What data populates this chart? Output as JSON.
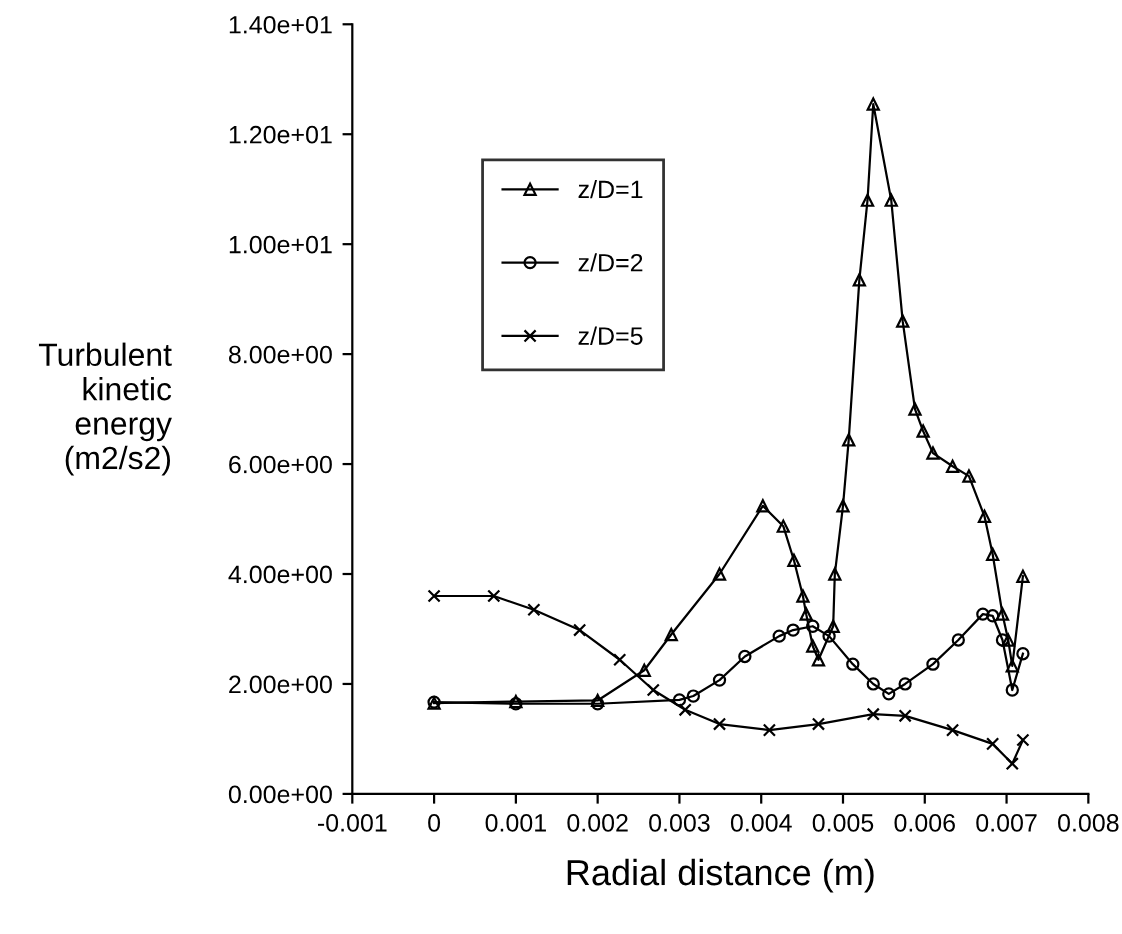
{
  "chart_data": {
    "type": "line",
    "xlabel": "Radial distance (m)",
    "ylabel": "Turbulent\nkinetic\nenergy\n(m2/s2)",
    "xlim": [
      -0.001,
      0.008
    ],
    "xticks": [
      -0.001,
      0,
      0.001,
      0.002,
      0.003,
      0.004,
      0.005,
      0.006,
      0.007,
      0.008
    ],
    "ylim": [
      0,
      14
    ],
    "yticks": [
      {
        "value": 0,
        "label": "0.00e+00"
      },
      {
        "value": 2,
        "label": "2.00e+00"
      },
      {
        "value": 4,
        "label": "4.00e+00"
      },
      {
        "value": 6,
        "label": "6.00e+00"
      },
      {
        "value": 8,
        "label": "8.00e+00"
      },
      {
        "value": 10,
        "label": "1.00e+01"
      },
      {
        "value": 12,
        "label": "1.20e+01"
      },
      {
        "value": 14,
        "label": "1.40e+01"
      }
    ],
    "grid": false,
    "legend": "top left",
    "line_style": "solid",
    "series": [
      {
        "name": "z/D=1",
        "color": "#000000",
        "marker": "triangle",
        "x": [
          0,
          0.001,
          0.002,
          0.00257,
          0.0029,
          0.00349,
          0.00402,
          0.00427,
          0.0044,
          0.00451,
          0.00455,
          0.00463,
          0.0047,
          0.00488,
          0.0049,
          0.005,
          0.00507,
          0.0052,
          0.0053,
          0.00537,
          0.00559,
          0.00573,
          0.00588,
          0.00598,
          0.0061,
          0.00634,
          0.00654,
          0.00673,
          0.00683,
          0.00695,
          0.00702,
          0.00707,
          0.0072
        ],
        "values": [
          1.65,
          1.68,
          1.7,
          2.25,
          2.9,
          4.0,
          5.24,
          4.87,
          4.25,
          3.6,
          3.27,
          2.69,
          2.44,
          3.05,
          4.0,
          5.24,
          6.44,
          9.35,
          10.8,
          12.55,
          10.8,
          8.6,
          7.0,
          6.6,
          6.2,
          5.96,
          5.78,
          5.05,
          4.36,
          3.27,
          2.8,
          2.33,
          3.96
        ]
      },
      {
        "name": "z/D=2",
        "color": "#000000",
        "marker": "circle",
        "x": [
          0,
          0.001,
          0.002,
          0.003,
          0.00317,
          0.00349,
          0.0038,
          0.00422,
          0.00439,
          0.00463,
          0.00483,
          0.00512,
          0.00537,
          0.00556,
          0.00576,
          0.0061,
          0.00641,
          0.00671,
          0.00683,
          0.00695,
          0.00707,
          0.0072
        ],
        "values": [
          1.67,
          1.64,
          1.64,
          1.71,
          1.78,
          2.07,
          2.5,
          2.87,
          2.98,
          3.05,
          2.87,
          2.36,
          2.0,
          1.82,
          2.0,
          2.36,
          2.8,
          3.27,
          3.24,
          2.8,
          1.89,
          2.55
        ]
      },
      {
        "name": "z/D=5",
        "color": "#000000",
        "marker": "cross",
        "x": [
          0,
          0.00073,
          0.00122,
          0.00178,
          0.00227,
          0.00268,
          0.00307,
          0.00349,
          0.0041,
          0.0047,
          0.00537,
          0.00576,
          0.00634,
          0.00683,
          0.00707,
          0.0072
        ],
        "values": [
          3.6,
          3.6,
          3.35,
          2.98,
          2.44,
          1.89,
          1.53,
          1.27,
          1.16,
          1.27,
          1.45,
          1.42,
          1.16,
          0.91,
          0.55,
          0.98
        ]
      }
    ]
  }
}
